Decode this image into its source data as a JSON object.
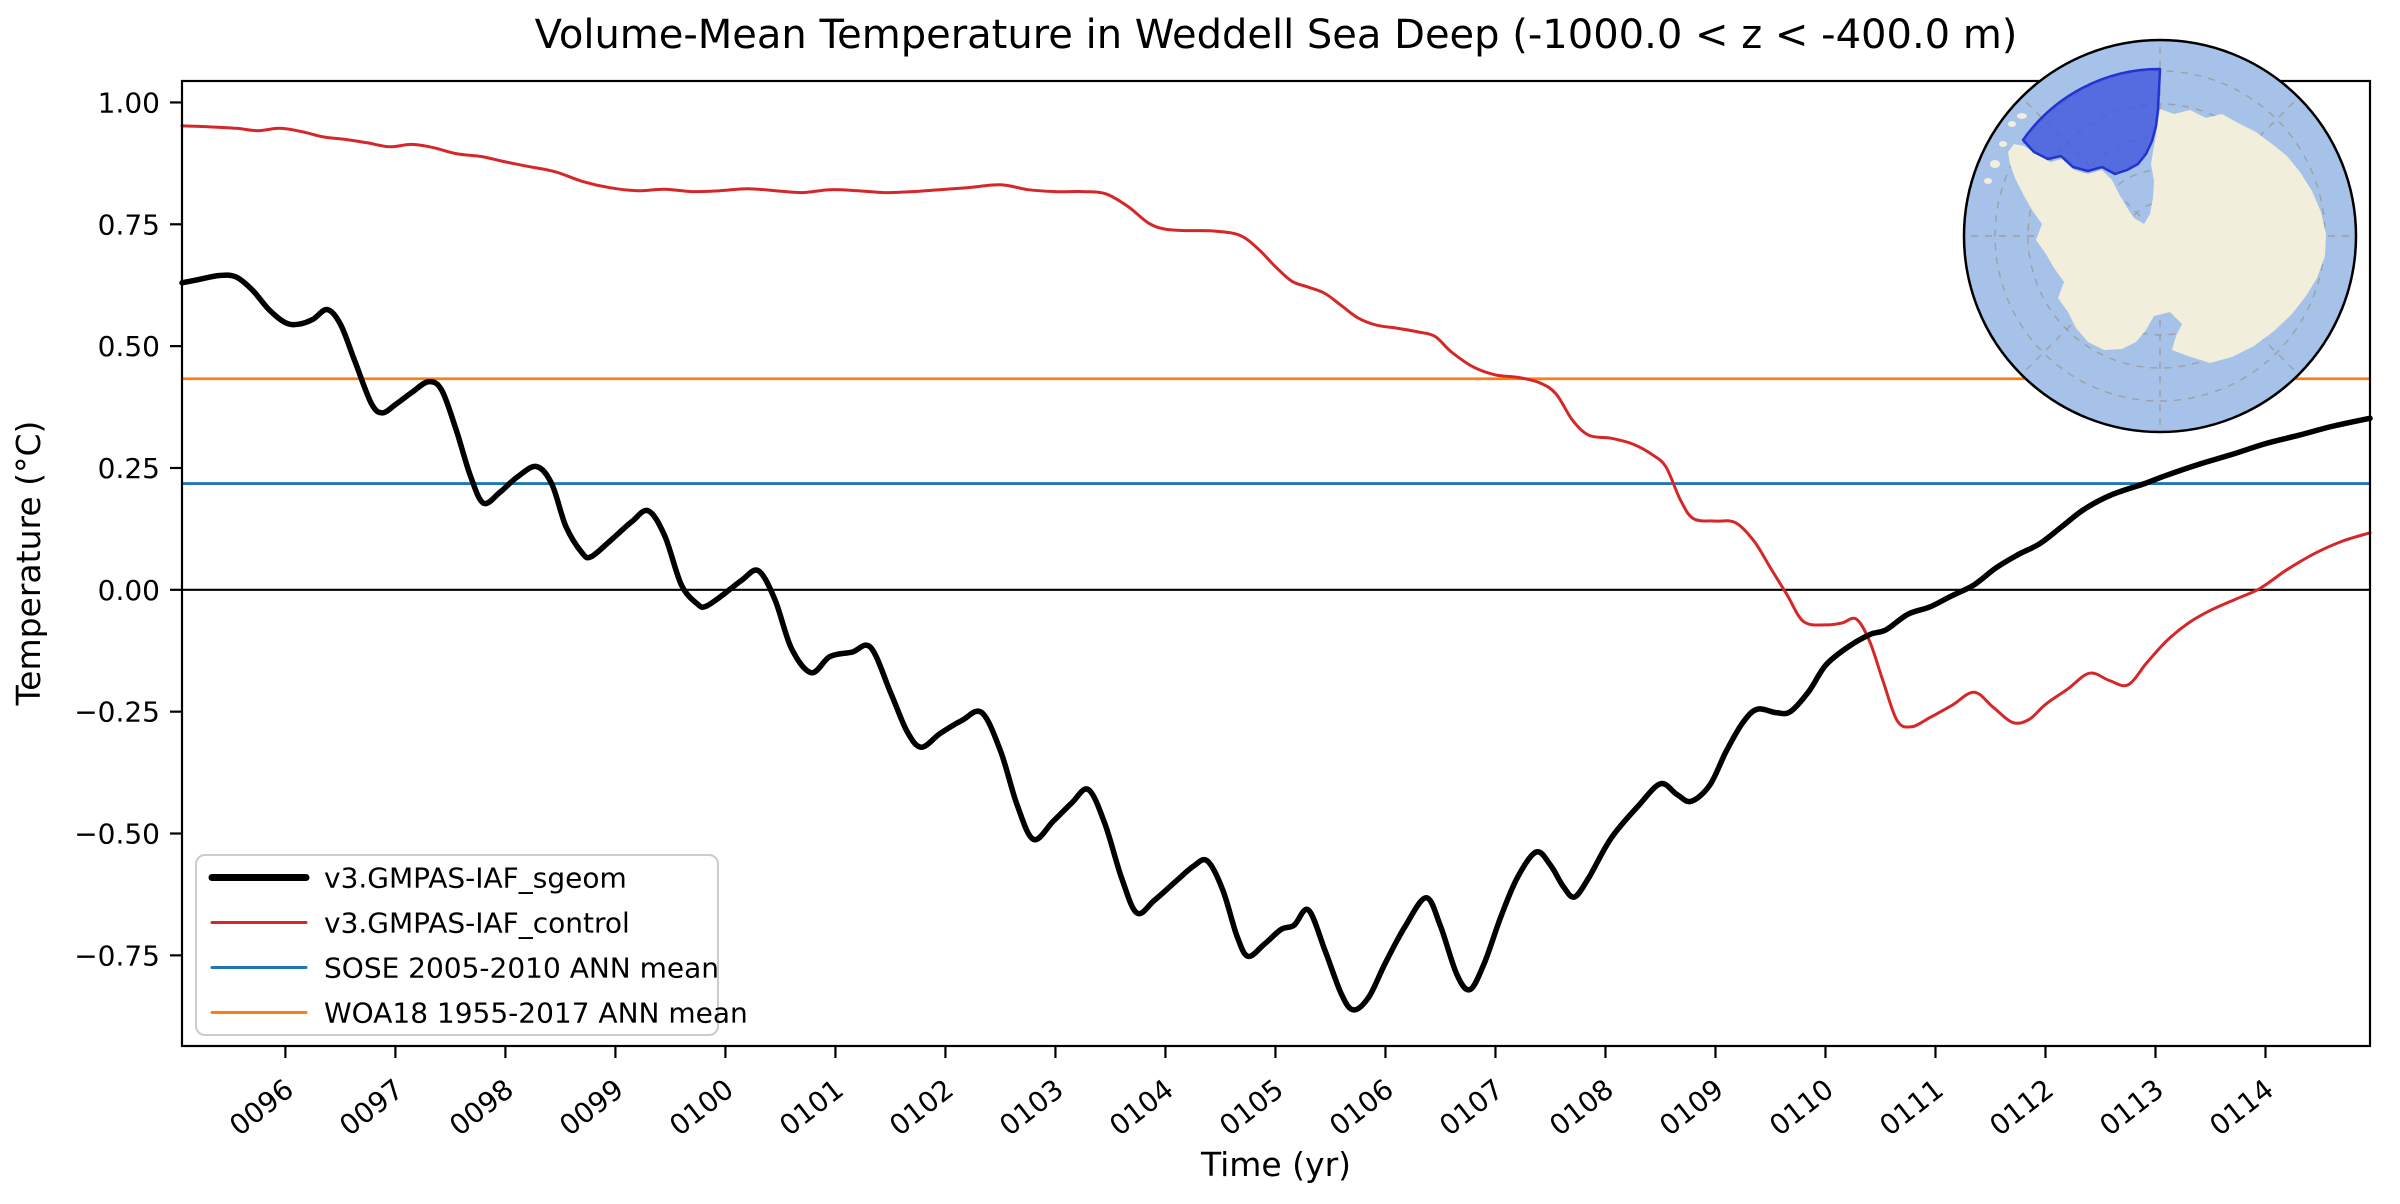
{
  "title": "Volume-Mean Temperature in Weddell Sea Deep (-1000.0 < z < -400.0 m)",
  "axes": {
    "xlabel": "Time (yr)",
    "ylabel": "Temperature (°C)"
  },
  "legend": {
    "items": [
      {
        "label": "v3.GMPAS-IAF_sgeom",
        "color": "#000000",
        "line_width": 7
      },
      {
        "label": "v3.GMPAS-IAF_control",
        "color": "#d62728",
        "line_width": 3
      },
      {
        "label": "SOSE 2005-2010 ANN mean",
        "color": "#1f77b4",
        "line_width": 3
      },
      {
        "label": "WOA18 1955-2017 ANN mean",
        "color": "#ff7f0e",
        "line_width": 3
      }
    ]
  },
  "inset_map": {
    "ocean_color": "#a6c2e8",
    "land_color": "#f1eedc",
    "region_fill": "#4156de",
    "region_edge": "#2433d0",
    "graticule_color": "#9a9a9a",
    "border_color": "#000000"
  },
  "chart_data": {
    "type": "line",
    "title": "Volume-Mean Temperature in Weddell Sea Deep (-1000.0 < z < -400.0 m)",
    "xlabel": "Time (yr)",
    "ylabel": "Temperature (°C)",
    "xlim": [
      95.06,
      114.95
    ],
    "ylim": [
      -0.936,
      1.044
    ],
    "grid": false,
    "legend_position": "lower left",
    "zero_line": 0.0,
    "x_ticks": [
      {
        "v": 96,
        "label": "0096"
      },
      {
        "v": 97,
        "label": "0097"
      },
      {
        "v": 98,
        "label": "0098"
      },
      {
        "v": 99,
        "label": "0099"
      },
      {
        "v": 100,
        "label": "0100"
      },
      {
        "v": 101,
        "label": "0101"
      },
      {
        "v": 102,
        "label": "0102"
      },
      {
        "v": 103,
        "label": "0103"
      },
      {
        "v": 104,
        "label": "0104"
      },
      {
        "v": 105,
        "label": "0105"
      },
      {
        "v": 106,
        "label": "0106"
      },
      {
        "v": 107,
        "label": "0107"
      },
      {
        "v": 108,
        "label": "0108"
      },
      {
        "v": 109,
        "label": "0109"
      },
      {
        "v": 110,
        "label": "0110"
      },
      {
        "v": 111,
        "label": "0111"
      },
      {
        "v": 112,
        "label": "0112"
      },
      {
        "v": 113,
        "label": "0113"
      },
      {
        "v": 114,
        "label": "0114"
      }
    ],
    "y_ticks": [
      {
        "v": 1.0,
        "label": "1.00"
      },
      {
        "v": 0.75,
        "label": "0.75"
      },
      {
        "v": 0.5,
        "label": "0.50"
      },
      {
        "v": 0.25,
        "label": "0.25"
      },
      {
        "v": 0.0,
        "label": "0.00"
      },
      {
        "v": -0.25,
        "label": "−0.25"
      },
      {
        "v": -0.5,
        "label": "−0.50"
      },
      {
        "v": -0.75,
        "label": "−0.75"
      }
    ],
    "series": [
      {
        "name": "v3.GMPAS-IAF_sgeom",
        "color": "#000000",
        "width": 5.5,
        "points": [
          [
            95.06,
            0.63
          ],
          [
            95.2,
            0.636
          ],
          [
            95.4,
            0.645
          ],
          [
            95.55,
            0.642
          ],
          [
            95.7,
            0.615
          ],
          [
            95.85,
            0.575
          ],
          [
            96.0,
            0.548
          ],
          [
            96.12,
            0.545
          ],
          [
            96.25,
            0.555
          ],
          [
            96.38,
            0.575
          ],
          [
            96.5,
            0.545
          ],
          [
            96.63,
            0.47
          ],
          [
            96.78,
            0.383
          ],
          [
            96.88,
            0.363
          ],
          [
            97.0,
            0.38
          ],
          [
            97.15,
            0.405
          ],
          [
            97.3,
            0.427
          ],
          [
            97.42,
            0.41
          ],
          [
            97.55,
            0.33
          ],
          [
            97.68,
            0.235
          ],
          [
            97.8,
            0.178
          ],
          [
            97.95,
            0.2
          ],
          [
            98.1,
            0.23
          ],
          [
            98.28,
            0.253
          ],
          [
            98.42,
            0.218
          ],
          [
            98.55,
            0.13
          ],
          [
            98.7,
            0.075
          ],
          [
            98.78,
            0.068
          ],
          [
            98.95,
            0.1
          ],
          [
            99.15,
            0.14
          ],
          [
            99.3,
            0.162
          ],
          [
            99.45,
            0.11
          ],
          [
            99.6,
            0.01
          ],
          [
            99.75,
            -0.03
          ],
          [
            99.82,
            -0.034
          ],
          [
            99.95,
            -0.015
          ],
          [
            100.15,
            0.02
          ],
          [
            100.3,
            0.039
          ],
          [
            100.45,
            -0.02
          ],
          [
            100.6,
            -0.12
          ],
          [
            100.78,
            -0.17
          ],
          [
            100.95,
            -0.137
          ],
          [
            101.15,
            -0.128
          ],
          [
            101.32,
            -0.118
          ],
          [
            101.5,
            -0.21
          ],
          [
            101.65,
            -0.29
          ],
          [
            101.78,
            -0.323
          ],
          [
            101.95,
            -0.295
          ],
          [
            102.15,
            -0.268
          ],
          [
            102.33,
            -0.252
          ],
          [
            102.5,
            -0.33
          ],
          [
            102.65,
            -0.44
          ],
          [
            102.8,
            -0.512
          ],
          [
            102.98,
            -0.475
          ],
          [
            103.15,
            -0.437
          ],
          [
            103.3,
            -0.41
          ],
          [
            103.45,
            -0.48
          ],
          [
            103.6,
            -0.59
          ],
          [
            103.74,
            -0.663
          ],
          [
            103.9,
            -0.637
          ],
          [
            104.1,
            -0.597
          ],
          [
            104.25,
            -0.568
          ],
          [
            104.38,
            -0.556
          ],
          [
            104.52,
            -0.615
          ],
          [
            104.65,
            -0.71
          ],
          [
            104.75,
            -0.752
          ],
          [
            104.9,
            -0.727
          ],
          [
            105.05,
            -0.697
          ],
          [
            105.17,
            -0.688
          ],
          [
            105.3,
            -0.657
          ],
          [
            105.45,
            -0.74
          ],
          [
            105.6,
            -0.83
          ],
          [
            105.71,
            -0.862
          ],
          [
            105.85,
            -0.835
          ],
          [
            106.0,
            -0.765
          ],
          [
            106.18,
            -0.69
          ],
          [
            106.37,
            -0.632
          ],
          [
            106.5,
            -0.69
          ],
          [
            106.65,
            -0.79
          ],
          [
            106.77,
            -0.82
          ],
          [
            106.9,
            -0.765
          ],
          [
            107.05,
            -0.67
          ],
          [
            107.2,
            -0.59
          ],
          [
            107.37,
            -0.538
          ],
          [
            107.5,
            -0.565
          ],
          [
            107.62,
            -0.61
          ],
          [
            107.72,
            -0.63
          ],
          [
            107.85,
            -0.59
          ],
          [
            108.05,
            -0.51
          ],
          [
            108.3,
            -0.443
          ],
          [
            108.5,
            -0.398
          ],
          [
            108.65,
            -0.42
          ],
          [
            108.78,
            -0.434
          ],
          [
            108.95,
            -0.4
          ],
          [
            109.1,
            -0.33
          ],
          [
            109.25,
            -0.272
          ],
          [
            109.38,
            -0.245
          ],
          [
            109.55,
            -0.252
          ],
          [
            109.68,
            -0.25
          ],
          [
            109.85,
            -0.208
          ],
          [
            110.0,
            -0.155
          ],
          [
            110.2,
            -0.118
          ],
          [
            110.4,
            -0.092
          ],
          [
            110.55,
            -0.082
          ],
          [
            110.75,
            -0.05
          ],
          [
            110.95,
            -0.035
          ],
          [
            111.15,
            -0.012
          ],
          [
            111.35,
            0.01
          ],
          [
            111.55,
            0.045
          ],
          [
            111.75,
            0.072
          ],
          [
            111.95,
            0.095
          ],
          [
            112.15,
            0.13
          ],
          [
            112.35,
            0.165
          ],
          [
            112.6,
            0.195
          ],
          [
            112.9,
            0.218
          ],
          [
            113.1,
            0.235
          ],
          [
            113.4,
            0.258
          ],
          [
            113.7,
            0.278
          ],
          [
            114.0,
            0.3
          ],
          [
            114.3,
            0.317
          ],
          [
            114.6,
            0.335
          ],
          [
            114.95,
            0.352
          ]
        ]
      },
      {
        "name": "v3.GMPAS-IAF_control",
        "color": "#d62728",
        "width": 3,
        "points": [
          [
            95.06,
            0.952
          ],
          [
            95.3,
            0.95
          ],
          [
            95.55,
            0.947
          ],
          [
            95.75,
            0.942
          ],
          [
            95.95,
            0.947
          ],
          [
            96.15,
            0.94
          ],
          [
            96.35,
            0.929
          ],
          [
            96.55,
            0.924
          ],
          [
            96.75,
            0.917
          ],
          [
            96.95,
            0.909
          ],
          [
            97.15,
            0.914
          ],
          [
            97.35,
            0.907
          ],
          [
            97.55,
            0.895
          ],
          [
            97.78,
            0.889
          ],
          [
            98.0,
            0.878
          ],
          [
            98.2,
            0.869
          ],
          [
            98.45,
            0.858
          ],
          [
            98.7,
            0.838
          ],
          [
            98.95,
            0.825
          ],
          [
            99.2,
            0.819
          ],
          [
            99.45,
            0.822
          ],
          [
            99.7,
            0.817
          ],
          [
            99.95,
            0.819
          ],
          [
            100.2,
            0.823
          ],
          [
            100.45,
            0.819
          ],
          [
            100.7,
            0.815
          ],
          [
            100.95,
            0.821
          ],
          [
            101.2,
            0.819
          ],
          [
            101.45,
            0.815
          ],
          [
            101.7,
            0.817
          ],
          [
            101.95,
            0.821
          ],
          [
            102.2,
            0.825
          ],
          [
            102.5,
            0.831
          ],
          [
            102.75,
            0.821
          ],
          [
            103.0,
            0.817
          ],
          [
            103.25,
            0.817
          ],
          [
            103.45,
            0.813
          ],
          [
            103.65,
            0.788
          ],
          [
            103.85,
            0.752
          ],
          [
            104.0,
            0.74
          ],
          [
            104.2,
            0.737
          ],
          [
            104.45,
            0.736
          ],
          [
            104.68,
            0.727
          ],
          [
            104.85,
            0.698
          ],
          [
            105.0,
            0.663
          ],
          [
            105.15,
            0.633
          ],
          [
            105.3,
            0.621
          ],
          [
            105.45,
            0.608
          ],
          [
            105.6,
            0.583
          ],
          [
            105.75,
            0.558
          ],
          [
            105.92,
            0.543
          ],
          [
            106.1,
            0.537
          ],
          [
            106.3,
            0.529
          ],
          [
            106.45,
            0.52
          ],
          [
            106.6,
            0.488
          ],
          [
            106.8,
            0.457
          ],
          [
            107.0,
            0.441
          ],
          [
            107.2,
            0.436
          ],
          [
            107.4,
            0.425
          ],
          [
            107.55,
            0.402
          ],
          [
            107.7,
            0.348
          ],
          [
            107.85,
            0.317
          ],
          [
            108.05,
            0.311
          ],
          [
            108.25,
            0.299
          ],
          [
            108.42,
            0.278
          ],
          [
            108.55,
            0.252
          ],
          [
            108.68,
            0.185
          ],
          [
            108.8,
            0.146
          ],
          [
            109.0,
            0.141
          ],
          [
            109.18,
            0.138
          ],
          [
            109.35,
            0.1
          ],
          [
            109.5,
            0.045
          ],
          [
            109.65,
            -0.01
          ],
          [
            109.8,
            -0.065
          ],
          [
            110.0,
            -0.072
          ],
          [
            110.15,
            -0.068
          ],
          [
            110.28,
            -0.06
          ],
          [
            110.4,
            -0.105
          ],
          [
            110.52,
            -0.185
          ],
          [
            110.65,
            -0.268
          ],
          [
            110.78,
            -0.281
          ],
          [
            110.95,
            -0.262
          ],
          [
            111.15,
            -0.237
          ],
          [
            111.35,
            -0.21
          ],
          [
            111.52,
            -0.24
          ],
          [
            111.7,
            -0.272
          ],
          [
            111.85,
            -0.266
          ],
          [
            112.0,
            -0.235
          ],
          [
            112.2,
            -0.204
          ],
          [
            112.4,
            -0.171
          ],
          [
            112.58,
            -0.186
          ],
          [
            112.75,
            -0.195
          ],
          [
            112.92,
            -0.15
          ],
          [
            113.1,
            -0.105
          ],
          [
            113.3,
            -0.068
          ],
          [
            113.5,
            -0.042
          ],
          [
            113.72,
            -0.02
          ],
          [
            113.95,
            0.003
          ],
          [
            114.2,
            0.042
          ],
          [
            114.45,
            0.075
          ],
          [
            114.7,
            0.1
          ],
          [
            114.95,
            0.117
          ]
        ]
      },
      {
        "name": "SOSE 2005-2010 ANN mean",
        "color": "#1f77b4",
        "width": 2.8,
        "constant": 0.218
      },
      {
        "name": "WOA18 1955-2017 ANN mean",
        "color": "#ff7f0e",
        "width": 2.8,
        "constant": 0.433
      }
    ]
  }
}
